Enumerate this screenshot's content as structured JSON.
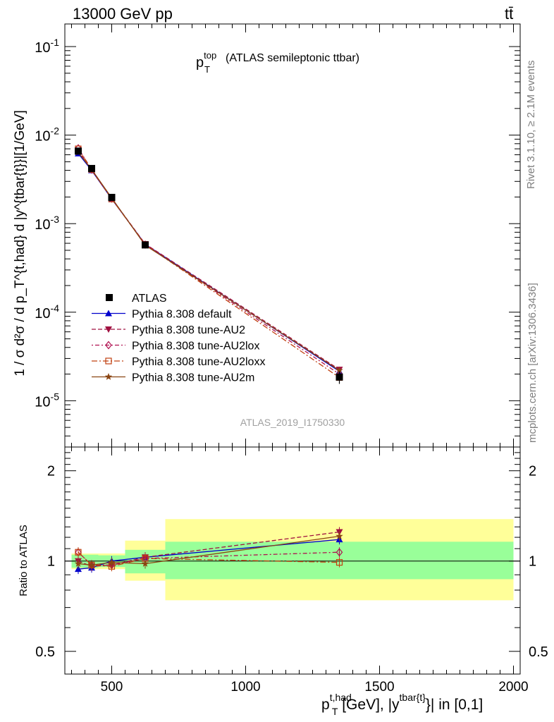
{
  "header": {
    "energy": "13000 GeV pp",
    "process": "tt̄"
  },
  "side_labels": {
    "rivet": "Rivet 3.1.10, ≥ 2.1M events",
    "mcplots": "mcplots.cern.ch [arXiv:1306.3436]"
  },
  "plot_title": {
    "var": "p",
    "sup": "top",
    "sub": "T",
    "rest": "(ATLAS semileptonic ttbar)"
  },
  "analysis_id": "ATLAS_2019_I1750330",
  "y_title_main": "1 / σ d²σ / d p_T^{t,had} d |y^{tbar{t}}|[1/GeV]",
  "y_title_ratio": "Ratio to ATLAS",
  "x_title": {
    "p": "p",
    "sup1": "t,had",
    "sub1": "T",
    "mid": " [GeV], |y",
    "sup2": "tbar{t}",
    "end": "}| in [0,1]"
  },
  "colors": {
    "data": "#000000",
    "default": "#0000cc",
    "AU2": "#a01040",
    "AU2lox": "#b01050",
    "AU2loxx": "#c04010",
    "AU2m": "#8b4513",
    "band_inner": "#99ff99",
    "band_outer": "#ffff99"
  },
  "chart_data": [
    {
      "type": "line",
      "yscale": "log",
      "xlim": [
        325,
        2025
      ],
      "ylim": [
        3e-06,
        0.18
      ],
      "y_ticks": [
        "10^{-5}",
        "10^{-4}",
        "10^{-3}",
        "10^{-2}",
        "10^{-1}"
      ],
      "x": [
        375,
        425,
        500,
        625,
        1350
      ],
      "x_bins": [
        [
          350,
          400
        ],
        [
          400,
          450
        ],
        [
          450,
          550
        ],
        [
          550,
          700
        ],
        [
          700,
          2000
        ]
      ],
      "series": [
        {
          "name": "ATLAS",
          "values": [
            0.0066,
            0.0042,
            0.00198,
            0.000575,
            1.85e-05
          ],
          "errors": [
            0.0004,
            0.00022,
            9e-05,
            2.5e-05,
            3e-06
          ]
        },
        {
          "name": "Pythia 8.308 default",
          "values": [
            0.0062,
            0.004,
            0.0019,
            0.000585,
            2.15e-05
          ]
        },
        {
          "name": "Pythia 8.308 tune-AU2",
          "values": [
            0.0067,
            0.004,
            0.00192,
            0.00059,
            2.25e-05
          ]
        },
        {
          "name": "Pythia 8.308 tune-AU2lox",
          "values": [
            0.0071,
            0.0041,
            0.00192,
            0.00058,
            2e-05
          ]
        },
        {
          "name": "Pythia 8.308 tune-AU2loxx",
          "values": [
            0.007,
            0.0041,
            0.0019,
            0.00058,
            1.83e-05
          ]
        },
        {
          "name": "Pythia 8.308 tune-AU2m",
          "values": [
            0.0064,
            0.0041,
            0.00195,
            0.00057,
            2.2e-05
          ]
        }
      ]
    },
    {
      "type": "line",
      "yscale": "log",
      "xlim": [
        325,
        2025
      ],
      "ylim": [
        0.42,
        2.4
      ],
      "x_ticks": [
        "500",
        "1000",
        "1500",
        "2000"
      ],
      "y_ticks": [
        "0.5",
        "1",
        "2"
      ],
      "x": [
        375,
        425,
        500,
        625,
        1350
      ],
      "bands": {
        "inner": [
          [
            0.95,
            1.05
          ],
          [
            0.95,
            1.05
          ],
          [
            0.955,
            1.045
          ],
          [
            0.91,
            1.09
          ],
          [
            0.87,
            1.16
          ]
        ],
        "outer": [
          [
            0.94,
            1.06
          ],
          [
            0.94,
            1.06
          ],
          [
            0.94,
            1.06
          ],
          [
            0.86,
            1.17
          ],
          [
            0.74,
            1.38
          ]
        ]
      },
      "series": [
        {
          "name": "Pythia 8.308 default",
          "values": [
            0.94,
            0.95,
            1.0,
            1.03,
            1.18
          ]
        },
        {
          "name": "Pythia 8.308 tune-AU2",
          "values": [
            1.0,
            0.96,
            0.97,
            1.03,
            1.25
          ]
        },
        {
          "name": "Pythia 8.308 tune-AU2lox",
          "values": [
            1.07,
            0.97,
            0.97,
            1.02,
            1.07
          ]
        },
        {
          "name": "Pythia 8.308 tune-AU2loxx",
          "values": [
            1.07,
            0.97,
            0.96,
            1.02,
            0.99
          ]
        },
        {
          "name": "Pythia 8.308 tune-AU2m",
          "values": [
            0.98,
            0.97,
            0.99,
            0.98,
            1.21
          ]
        }
      ]
    }
  ]
}
